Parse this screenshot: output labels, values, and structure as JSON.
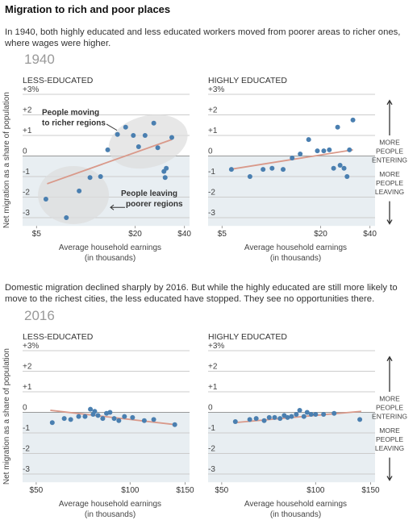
{
  "texts": {
    "title": "Migration to rich and poor places",
    "intro_1940": "In 1940, both highly educated and less educated workers moved from poorer areas to richer ones, where wages were higher.",
    "intro_2016": "Domestic migration declined sharply by 2016. But while the highly educated are still more likely to move to the richest cities, the less educated have stopped. They see no opportunities there."
  },
  "chart_data": [
    {
      "type": "scatter",
      "section": "1940",
      "title": "LESS-EDUCATED",
      "ylabel": "Net migration as a share of population",
      "xscale": "log",
      "xlim": [
        4.6,
        43
      ],
      "ylim": [
        -3.4,
        3
      ],
      "xticks": [
        {
          "value": 5,
          "label": "$5"
        },
        {
          "value": 20,
          "label": "$20"
        },
        {
          "value": 40,
          "label": "$40"
        }
      ],
      "yticks": [
        {
          "value": 3,
          "label": "+3%"
        },
        {
          "value": 2,
          "label": "+2"
        },
        {
          "value": 1,
          "label": "+1"
        },
        0,
        -1,
        -2,
        -3
      ],
      "xlabel": [
        "Average household earnings",
        "(in thousands)"
      ],
      "color": "#4a7fb0",
      "trend_color": "#d9998a",
      "x": [
        5.7,
        7.6,
        9.1,
        10.6,
        12.3,
        13.6,
        15.6,
        17.5,
        19.5,
        21,
        23,
        26,
        27.5,
        30,
        30.5,
        31,
        33.5
      ],
      "values": [
        -2.1,
        -3.0,
        -1.7,
        -1.05,
        -1.0,
        0.3,
        1.05,
        1.4,
        1.0,
        0.45,
        1.0,
        1.6,
        0.4,
        -0.75,
        -1.05,
        -0.6,
        0.9
      ],
      "trend": {
        "x": [
          5.8,
          33.5
        ],
        "values": [
          -1.35,
          0.8
        ]
      },
      "callouts": [
        [
          "People moving",
          "to richer regions"
        ],
        [
          "People leaving",
          "poorer regions"
        ]
      ]
    },
    {
      "type": "scatter",
      "title": "HIGHLY EDUCATED",
      "xscale": "log",
      "xlim": [
        4.6,
        43
      ],
      "ylim": [
        -3.4,
        3
      ],
      "xticks": [
        {
          "value": 5,
          "label": "$5"
        },
        {
          "value": 20,
          "label": "$20"
        },
        {
          "value": 40,
          "label": "$40"
        }
      ],
      "yticks": [
        {
          "value": 3,
          "label": "+3%"
        },
        {
          "value": 2,
          "label": "+2"
        },
        {
          "value": 1,
          "label": "+1"
        },
        0,
        -1,
        -2,
        -3
      ],
      "xlabel": [
        "Average household earnings",
        "(in thousands)"
      ],
      "color": "#4a7fb0",
      "trend_color": "#d9998a",
      "x": [
        5.7,
        7.4,
        8.9,
        10.1,
        11.8,
        13.4,
        15.0,
        16.9,
        19.1,
        20.9,
        22.6,
        24,
        25.4,
        26.3,
        27.8,
        29,
        30,
        31.5
      ],
      "values": [
        -0.65,
        -1.0,
        -0.65,
        -0.6,
        -0.65,
        -0.1,
        0.1,
        0.8,
        0.25,
        0.25,
        0.3,
        -0.6,
        1.4,
        -0.45,
        -0.6,
        -1.0,
        0.3,
        1.75
      ],
      "trend": {
        "x": [
          5.6,
          31.5
        ],
        "values": [
          -0.65,
          0.3
        ]
      },
      "annotations": {
        "up": [
          "MORE",
          "PEOPLE",
          "ENTERING"
        ],
        "down": [
          "MORE",
          "PEOPLE",
          "LEAVING"
        ]
      }
    },
    {
      "type": "scatter",
      "section": "2016",
      "title": "LESS-EDUCATED",
      "ylabel": "Net migration as a share of population",
      "xscale": "log",
      "xlim": [
        48,
        155
      ],
      "ylim": [
        -3.4,
        3
      ],
      "xticks": [
        {
          "value": 50,
          "label": "$50"
        },
        {
          "value": 100,
          "label": "$100"
        },
        {
          "value": 150,
          "label": "$150"
        }
      ],
      "yticks": [
        {
          "value": 3,
          "label": "+3%"
        },
        {
          "value": 2,
          "label": "+2"
        },
        {
          "value": 1,
          "label": "+1"
        },
        0,
        -1,
        -2,
        -3
      ],
      "xlabel": [
        "Average household earnings",
        "(in thousands)"
      ],
      "color": "#4a7fb0",
      "trend_color": "#d9998a",
      "x": [
        56.3,
        61.5,
        64.5,
        68.4,
        71.7,
        74.6,
        76.1,
        77,
        78.9,
        81.7,
        84,
        86.2,
        88.9,
        92,
        95.9,
        101.8,
        111,
        119,
        139
      ],
      "values": [
        -0.5,
        -0.3,
        -0.35,
        -0.2,
        -0.2,
        0.15,
        -0.1,
        0.05,
        -0.15,
        -0.3,
        -0.05,
        0,
        -0.3,
        -0.4,
        -0.2,
        -0.25,
        -0.4,
        -0.35,
        -0.6
      ],
      "trend": {
        "x": [
          55.5,
          140
        ],
        "values": [
          0.1,
          -0.6
        ]
      }
    },
    {
      "type": "scatter",
      "title": "HIGHLY EDUCATED",
      "xscale": "log",
      "xlim": [
        48,
        155
      ],
      "ylim": [
        -3.4,
        3
      ],
      "xticks": [
        {
          "value": 50,
          "label": "$50"
        },
        {
          "value": 100,
          "label": "$100"
        },
        {
          "value": 150,
          "label": "$150"
        }
      ],
      "yticks": [
        {
          "value": 3,
          "label": "+3%"
        },
        {
          "value": 2,
          "label": "+2"
        },
        {
          "value": 1,
          "label": "+1"
        },
        0,
        -1,
        -2,
        -3
      ],
      "xlabel": [
        "Average household earnings",
        "(in thousands)"
      ],
      "color": "#4a7fb0",
      "trend_color": "#d9998a",
      "x": [
        55.3,
        61.5,
        64.5,
        68.4,
        71,
        73.9,
        76.9,
        79.3,
        81.3,
        83.7,
        86.7,
        88.9,
        91.7,
        93.9,
        96.7,
        100,
        106,
        114.6,
        138.5
      ],
      "values": [
        -0.45,
        -0.35,
        -0.3,
        -0.4,
        -0.25,
        -0.25,
        -0.3,
        -0.15,
        -0.25,
        -0.2,
        -0.1,
        0.1,
        -0.2,
        0,
        -0.1,
        -0.1,
        -0.1,
        -0.05,
        -0.35
      ],
      "trend": {
        "x": [
          55,
          140
        ],
        "values": [
          -0.5,
          0.05
        ]
      },
      "annotations": {
        "up": [
          "MORE",
          "PEOPLE",
          "ENTERING"
        ],
        "down": [
          "MORE",
          "PEOPLE",
          "LEAVING"
        ]
      }
    }
  ]
}
